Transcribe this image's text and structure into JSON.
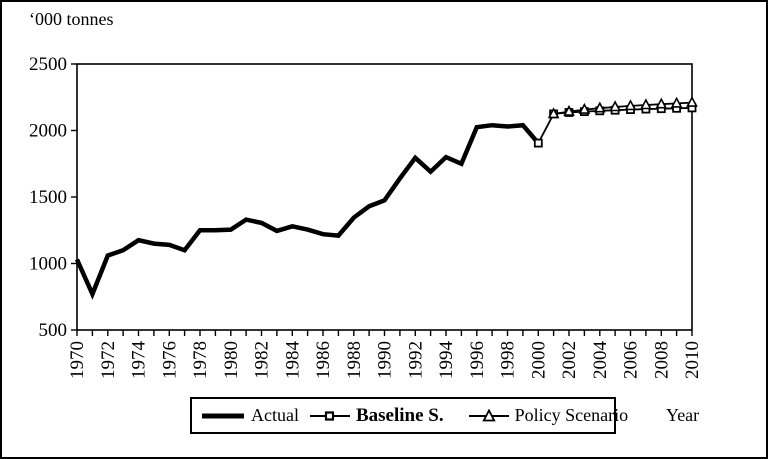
{
  "window": {
    "background": "#ffffff",
    "border_color": "#000000",
    "ink_color": "#000000"
  },
  "chart_data": {
    "type": "line",
    "title": "‘000 tonnes",
    "xlabel": "Year",
    "ylabel": "‘000 tonnes",
    "x_range": [
      1970,
      2010
    ],
    "x_tick_every": 1,
    "x_label_every": 2,
    "x_tick_labels": [
      1970,
      1972,
      1974,
      1976,
      1978,
      1980,
      1982,
      1984,
      1986,
      1988,
      1990,
      1992,
      1994,
      1996,
      1998,
      2000,
      2002,
      2004,
      2006,
      2008,
      2010
    ],
    "ylim": [
      500,
      2500
    ],
    "y_ticks": [
      500,
      1000,
      1500,
      2000,
      2500
    ],
    "grid": false,
    "legend_position": "bottom",
    "series": [
      {
        "name": "Actual",
        "marker": "none",
        "line_width": 4.5,
        "x_start": 1970,
        "values": [
          1030,
          770,
          1060,
          1100,
          1175,
          1150,
          1140,
          1100,
          1250,
          1250,
          1255,
          1330,
          1305,
          1245,
          1280,
          1255,
          1220,
          1210,
          1345,
          1430,
          1475,
          1640,
          1795,
          1690,
          1800,
          1750,
          2025,
          2040,
          2030,
          2040,
          1905
        ]
      },
      {
        "name": "Baseline S.",
        "marker": "square",
        "line_width": 1.8,
        "x_start": 2000,
        "values": [
          1905,
          2125,
          2135,
          2142,
          2148,
          2153,
          2157,
          2161,
          2164,
          2167,
          2170
        ]
      },
      {
        "name": "Policy Scenario",
        "marker": "triangle",
        "line_width": 1.8,
        "x_start": 2001,
        "values": [
          2125,
          2142,
          2157,
          2168,
          2177,
          2185,
          2192,
          2198,
          2204,
          2210
        ]
      }
    ]
  }
}
